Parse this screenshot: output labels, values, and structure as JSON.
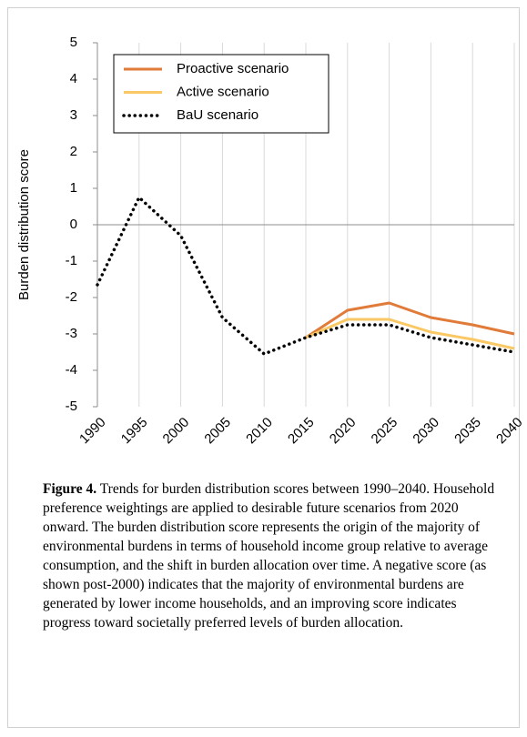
{
  "chart_data": {
    "type": "line",
    "y_label": "Burden distribution score",
    "x": [
      1990,
      1995,
      2000,
      2005,
      2010,
      2015,
      2020,
      2025,
      2030,
      2035,
      2040
    ],
    "series": [
      {
        "name": "Proactive scenario",
        "color": "#e07b39",
        "style": "solid",
        "values": [
          null,
          null,
          null,
          null,
          null,
          -3.1,
          -2.35,
          -2.15,
          -2.55,
          -2.75,
          -3.0
        ]
      },
      {
        "name": "Active scenario",
        "color": "#fac864",
        "style": "solid",
        "values": [
          null,
          null,
          null,
          null,
          null,
          -3.1,
          -2.6,
          -2.6,
          -2.95,
          -3.15,
          -3.4
        ]
      },
      {
        "name": "BaU scenario",
        "color": "#000000",
        "style": "dotted",
        "values": [
          -1.65,
          0.75,
          -0.3,
          -2.55,
          -3.55,
          -3.1,
          -2.75,
          -2.75,
          -3.1,
          -3.3,
          -3.5
        ]
      }
    ],
    "xlim": [
      1990,
      2040
    ],
    "xticks": [
      1990,
      1995,
      2000,
      2005,
      2010,
      2015,
      2020,
      2025,
      2030,
      2035,
      2040
    ],
    "ylim": [
      -5,
      5
    ],
    "yticks": [
      -5,
      -4,
      -3,
      -2,
      -1,
      0,
      1,
      2,
      3,
      4,
      5
    ],
    "grid": "x",
    "legend": "top-left"
  },
  "caption": {
    "label": "Figure 4.",
    "text": "Trends for burden distribution scores between 1990–2040. Household preference weightings are applied to desirable future scenarios from 2020 onward. The burden distribution score represents the origin of the majority of environmental burdens in terms of household income group relative to average consumption, and the shift in burden allocation over time. A negative score (as shown post-2000) indicates that the majority of environmental burdens are generated by lower income households, and an improving score indicates progress toward societally preferred levels of burden allocation."
  }
}
